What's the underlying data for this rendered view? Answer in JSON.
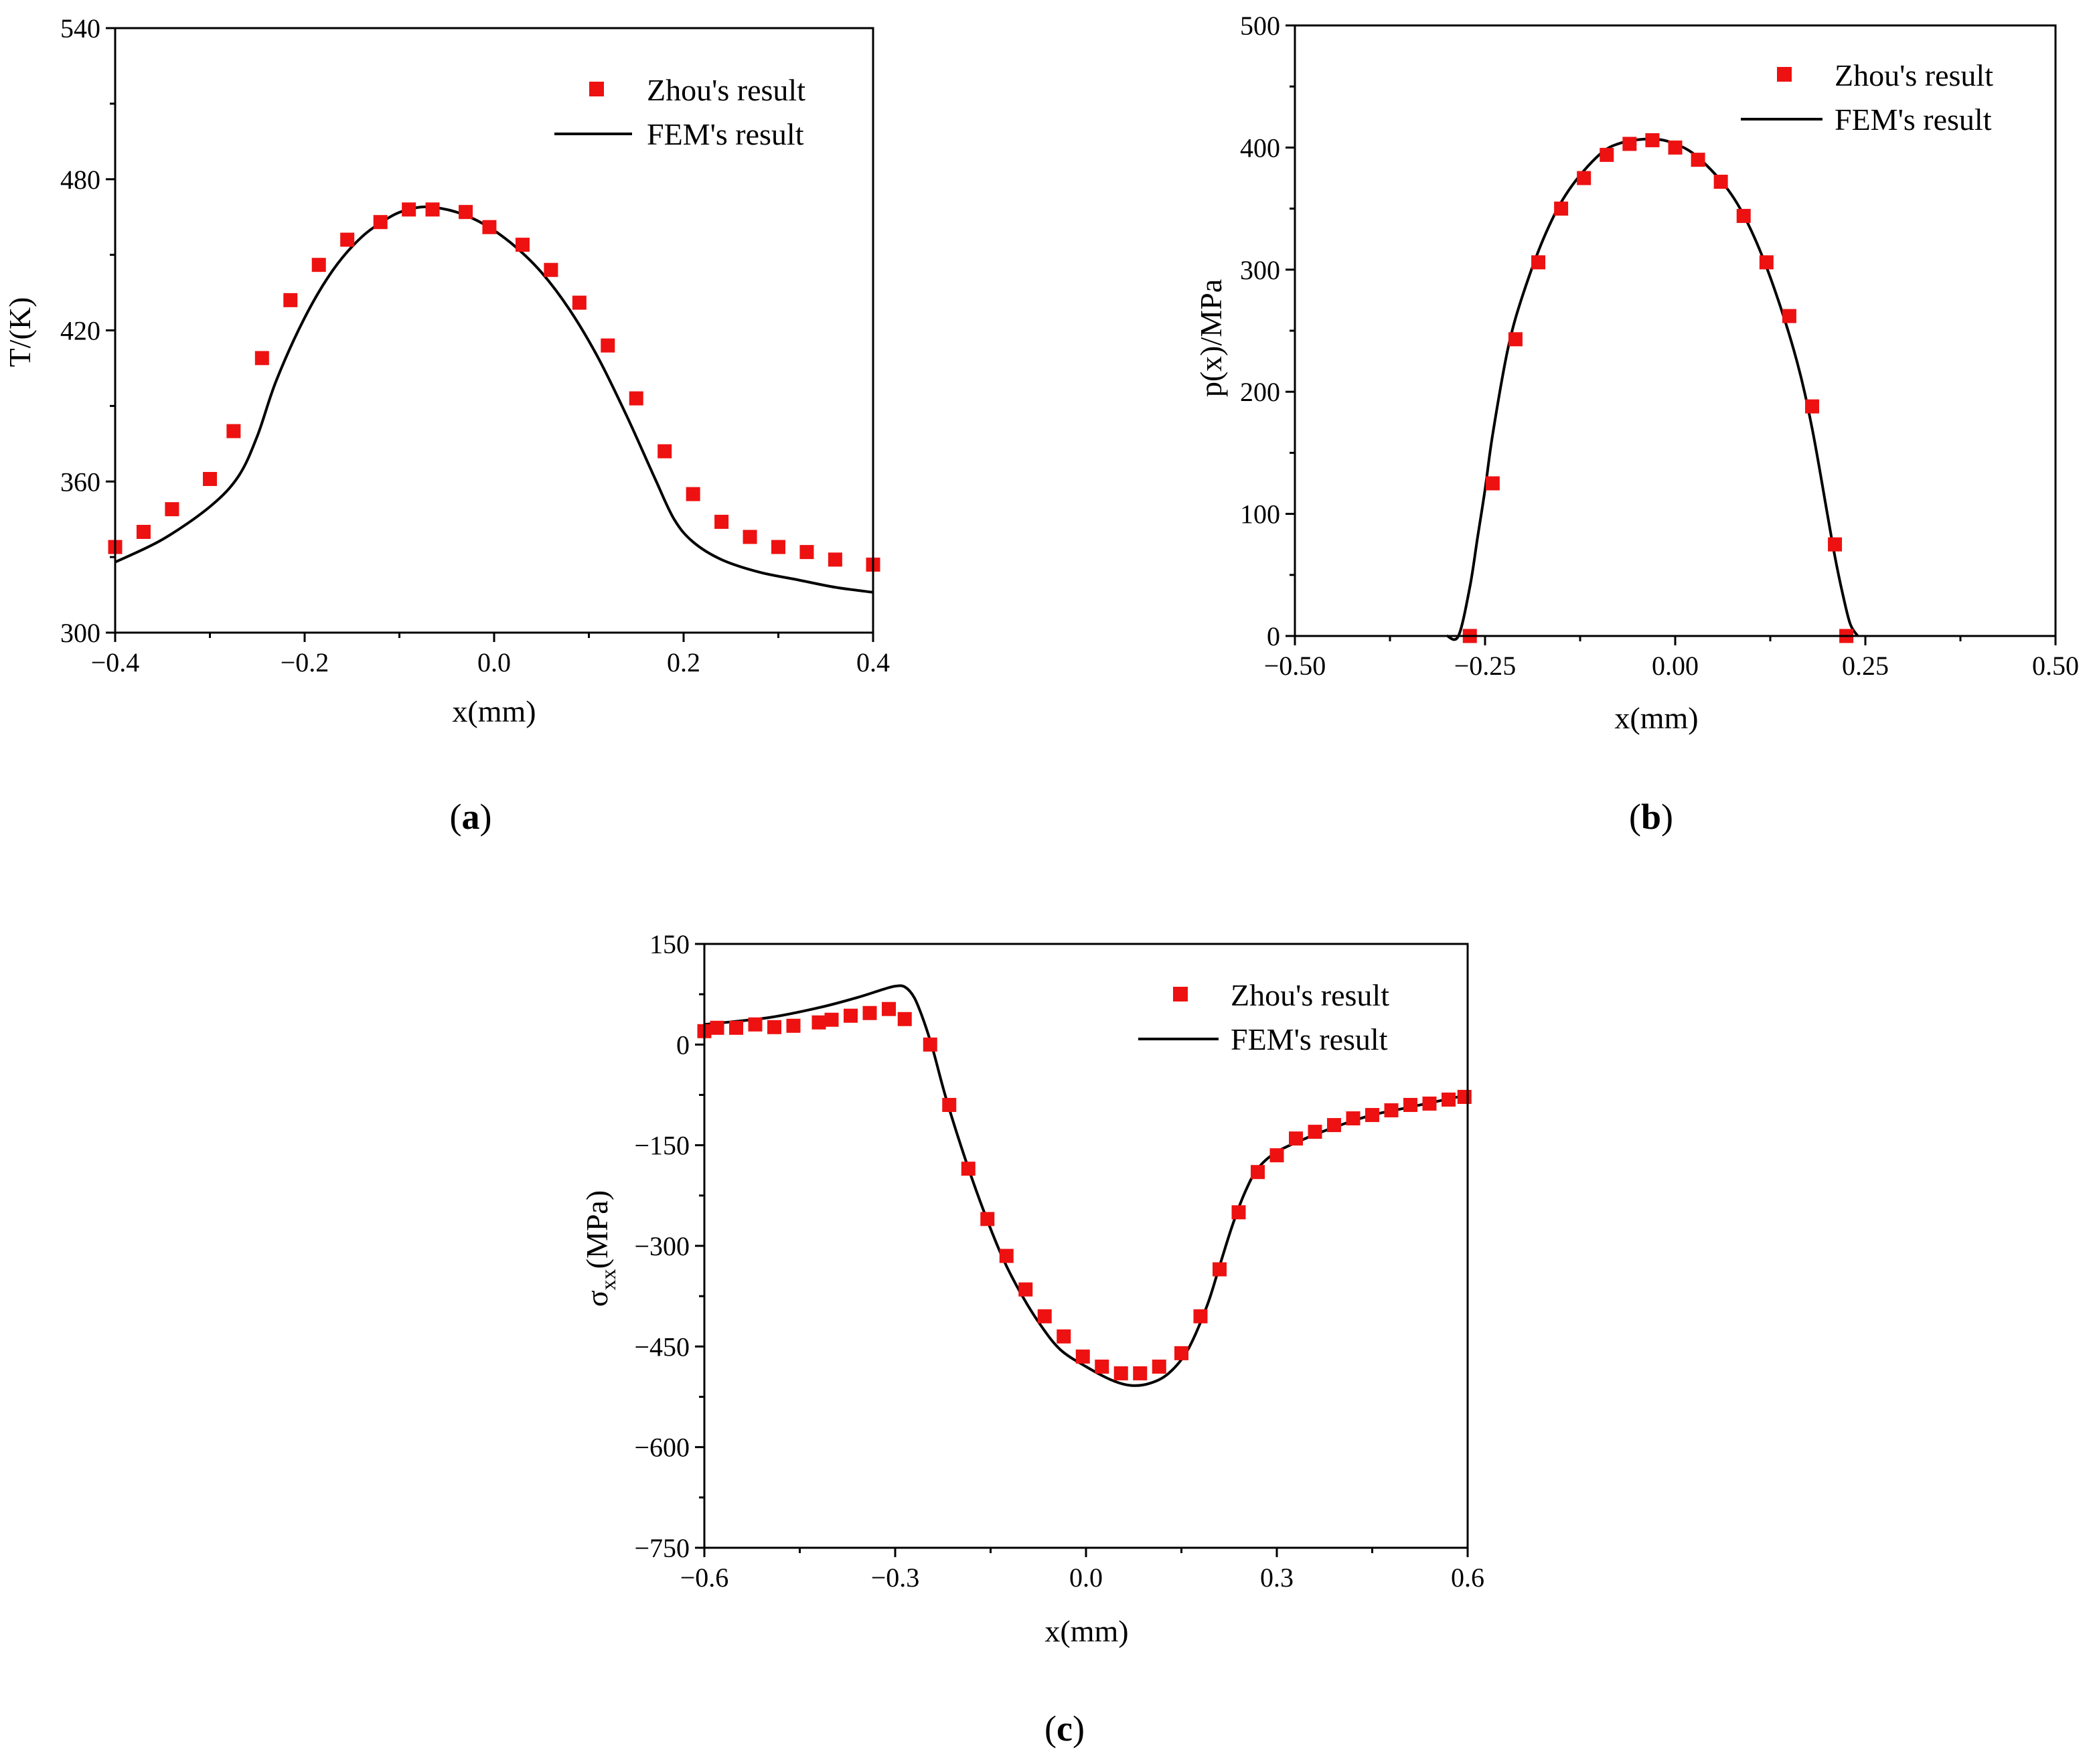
{
  "chart_data": [
    {
      "id": "a",
      "type": "scatter+line",
      "panel_label": "a",
      "xlabel": "x(mm)",
      "ylabel": "T/(K)",
      "xlim": [
        -0.4,
        0.4
      ],
      "ylim": [
        300,
        540
      ],
      "xticks": [
        -0.4,
        -0.2,
        0.0,
        0.2,
        0.4
      ],
      "xtick_labels": [
        "−0.4",
        "−0.2",
        "0.0",
        "0.2",
        "0.4"
      ],
      "yticks": [
        300,
        360,
        420,
        480,
        540
      ],
      "ytick_labels": [
        "300",
        "360",
        "420",
        "480",
        "540"
      ],
      "legend_position": "top-right",
      "series": [
        {
          "name": "Zhou's result",
          "kind": "markers",
          "color": "#ee1111",
          "x": [
            -0.4,
            -0.37,
            -0.34,
            -0.3,
            -0.275,
            -0.245,
            -0.215,
            -0.185,
            -0.155,
            -0.12,
            -0.09,
            -0.065,
            -0.03,
            -0.005,
            0.03,
            0.06,
            0.09,
            0.12,
            0.15,
            0.18,
            0.21,
            0.24,
            0.27,
            0.3,
            0.33,
            0.36,
            0.4
          ],
          "y": [
            334,
            340,
            349,
            361,
            380,
            409,
            432,
            446,
            456,
            463,
            468,
            468,
            467,
            461,
            454,
            444,
            431,
            414,
            393,
            372,
            355,
            344,
            338,
            334,
            332,
            329,
            327
          ]
        },
        {
          "name": "FEM's result",
          "kind": "line",
          "color": "#000000",
          "x": [
            -0.4,
            -0.35,
            -0.3,
            -0.27,
            -0.25,
            -0.23,
            -0.2,
            -0.17,
            -0.14,
            -0.11,
            -0.09,
            -0.07,
            -0.04,
            -0.01,
            0.02,
            0.05,
            0.08,
            0.11,
            0.14,
            0.17,
            0.19,
            0.21,
            0.24,
            0.28,
            0.32,
            0.36,
            0.4
          ],
          "y": [
            328,
            337,
            350,
            362,
            378,
            400,
            425,
            444,
            457,
            465,
            468,
            469,
            467,
            462,
            454,
            443,
            428,
            409,
            386,
            361,
            345,
            336,
            329,
            324,
            321,
            318,
            316
          ]
        }
      ]
    },
    {
      "id": "b",
      "type": "scatter+line",
      "panel_label": "b",
      "xlabel": "x(mm)",
      "ylabel": "p(x)/MPa",
      "xlim": [
        -0.5,
        0.5
      ],
      "ylim": [
        0,
        500
      ],
      "xticks": [
        -0.5,
        -0.25,
        0.0,
        0.25,
        0.5
      ],
      "xtick_labels": [
        "−0.50",
        "−0.25",
        "0.00",
        "0.25",
        "0.50"
      ],
      "yticks": [
        0,
        100,
        200,
        300,
        400,
        500
      ],
      "ytick_labels": [
        "0",
        "100",
        "200",
        "300",
        "400",
        "500"
      ],
      "legend_position": "top-right",
      "series": [
        {
          "name": "Zhou's result",
          "kind": "markers",
          "color": "#ee1111",
          "x": [
            -0.27,
            -0.24,
            -0.21,
            -0.18,
            -0.15,
            -0.12,
            -0.09,
            -0.06,
            -0.03,
            0.0,
            0.03,
            0.06,
            0.09,
            0.12,
            0.15,
            0.18,
            0.21,
            0.225
          ],
          "y": [
            0,
            125,
            243,
            306,
            350,
            375,
            394,
            403,
            406,
            400,
            390,
            372,
            344,
            306,
            262,
            188,
            75,
            0
          ]
        },
        {
          "name": "FEM's result",
          "kind": "line",
          "color": "#000000",
          "x": [
            -0.3,
            -0.285,
            -0.27,
            -0.26,
            -0.25,
            -0.24,
            -0.22,
            -0.2,
            -0.17,
            -0.14,
            -0.1,
            -0.07,
            -0.03,
            0.0,
            0.03,
            0.07,
            0.1,
            0.13,
            0.16,
            0.18,
            0.2,
            0.21,
            0.22,
            0.23,
            0.24
          ],
          "y": [
            0,
            0,
            40,
            80,
            120,
            165,
            235,
            280,
            330,
            365,
            394,
            404,
            407,
            403,
            392,
            365,
            332,
            285,
            225,
            170,
            100,
            65,
            35,
            10,
            0
          ]
        }
      ]
    },
    {
      "id": "c",
      "type": "scatter+line",
      "panel_label": "c",
      "xlabel": "x(mm)",
      "ylabel_main": "σ",
      "ylabel_sub": "xx",
      "ylabel_rest": "(MPa)",
      "xlim": [
        -0.6,
        0.6
      ],
      "ylim": [
        -750,
        150
      ],
      "xticks": [
        -0.6,
        -0.3,
        0.0,
        0.3,
        0.6
      ],
      "xtick_labels": [
        "−0.6",
        "−0.3",
        "0.0",
        "0.3",
        "0.6"
      ],
      "yticks": [
        -750,
        -600,
        -450,
        -300,
        -150,
        0,
        150
      ],
      "ytick_labels": [
        "−750",
        "−600",
        "−450",
        "−300",
        "−150",
        "0",
        "150"
      ],
      "legend_position": "top-right",
      "series": [
        {
          "name": "Zhou's result",
          "kind": "markers",
          "color": "#ee1111",
          "x": [
            -0.6,
            -0.58,
            -0.55,
            -0.52,
            -0.49,
            -0.46,
            -0.42,
            -0.4,
            -0.37,
            -0.34,
            -0.31,
            -0.285,
            -0.245,
            -0.215,
            -0.185,
            -0.155,
            -0.125,
            -0.095,
            -0.065,
            -0.035,
            -0.005,
            0.025,
            0.055,
            0.085,
            0.115,
            0.15,
            0.18,
            0.21,
            0.24,
            0.27,
            0.3,
            0.33,
            0.36,
            0.39,
            0.42,
            0.45,
            0.48,
            0.51,
            0.54,
            0.57,
            0.595
          ],
          "y": [
            20,
            25,
            25,
            30,
            26,
            28,
            33,
            37,
            43,
            47,
            53,
            38,
            0,
            -90,
            -185,
            -260,
            -315,
            -365,
            -405,
            -435,
            -465,
            -480,
            -490,
            -490,
            -480,
            -460,
            -405,
            -335,
            -250,
            -190,
            -165,
            -140,
            -130,
            -120,
            -110,
            -105,
            -98,
            -90,
            -88,
            -82,
            -78
          ]
        },
        {
          "name": "FEM's result",
          "kind": "line",
          "color": "#000000",
          "x": [
            -0.6,
            -0.5,
            -0.42,
            -0.36,
            -0.32,
            -0.3,
            -0.285,
            -0.27,
            -0.255,
            -0.24,
            -0.22,
            -0.19,
            -0.16,
            -0.13,
            -0.1,
            -0.07,
            -0.04,
            0.0,
            0.04,
            0.07,
            0.1,
            0.13,
            0.16,
            0.19,
            0.21,
            0.23,
            0.25,
            0.27,
            0.3,
            0.35,
            0.4,
            0.45,
            0.5,
            0.55,
            0.6
          ],
          "y": [
            30,
            40,
            55,
            70,
            82,
            87,
            86,
            70,
            35,
            -10,
            -80,
            -170,
            -250,
            -320,
            -375,
            -420,
            -455,
            -480,
            -500,
            -508,
            -505,
            -490,
            -455,
            -390,
            -330,
            -270,
            -220,
            -185,
            -160,
            -138,
            -120,
            -105,
            -95,
            -85,
            -75
          ]
        }
      ]
    }
  ]
}
